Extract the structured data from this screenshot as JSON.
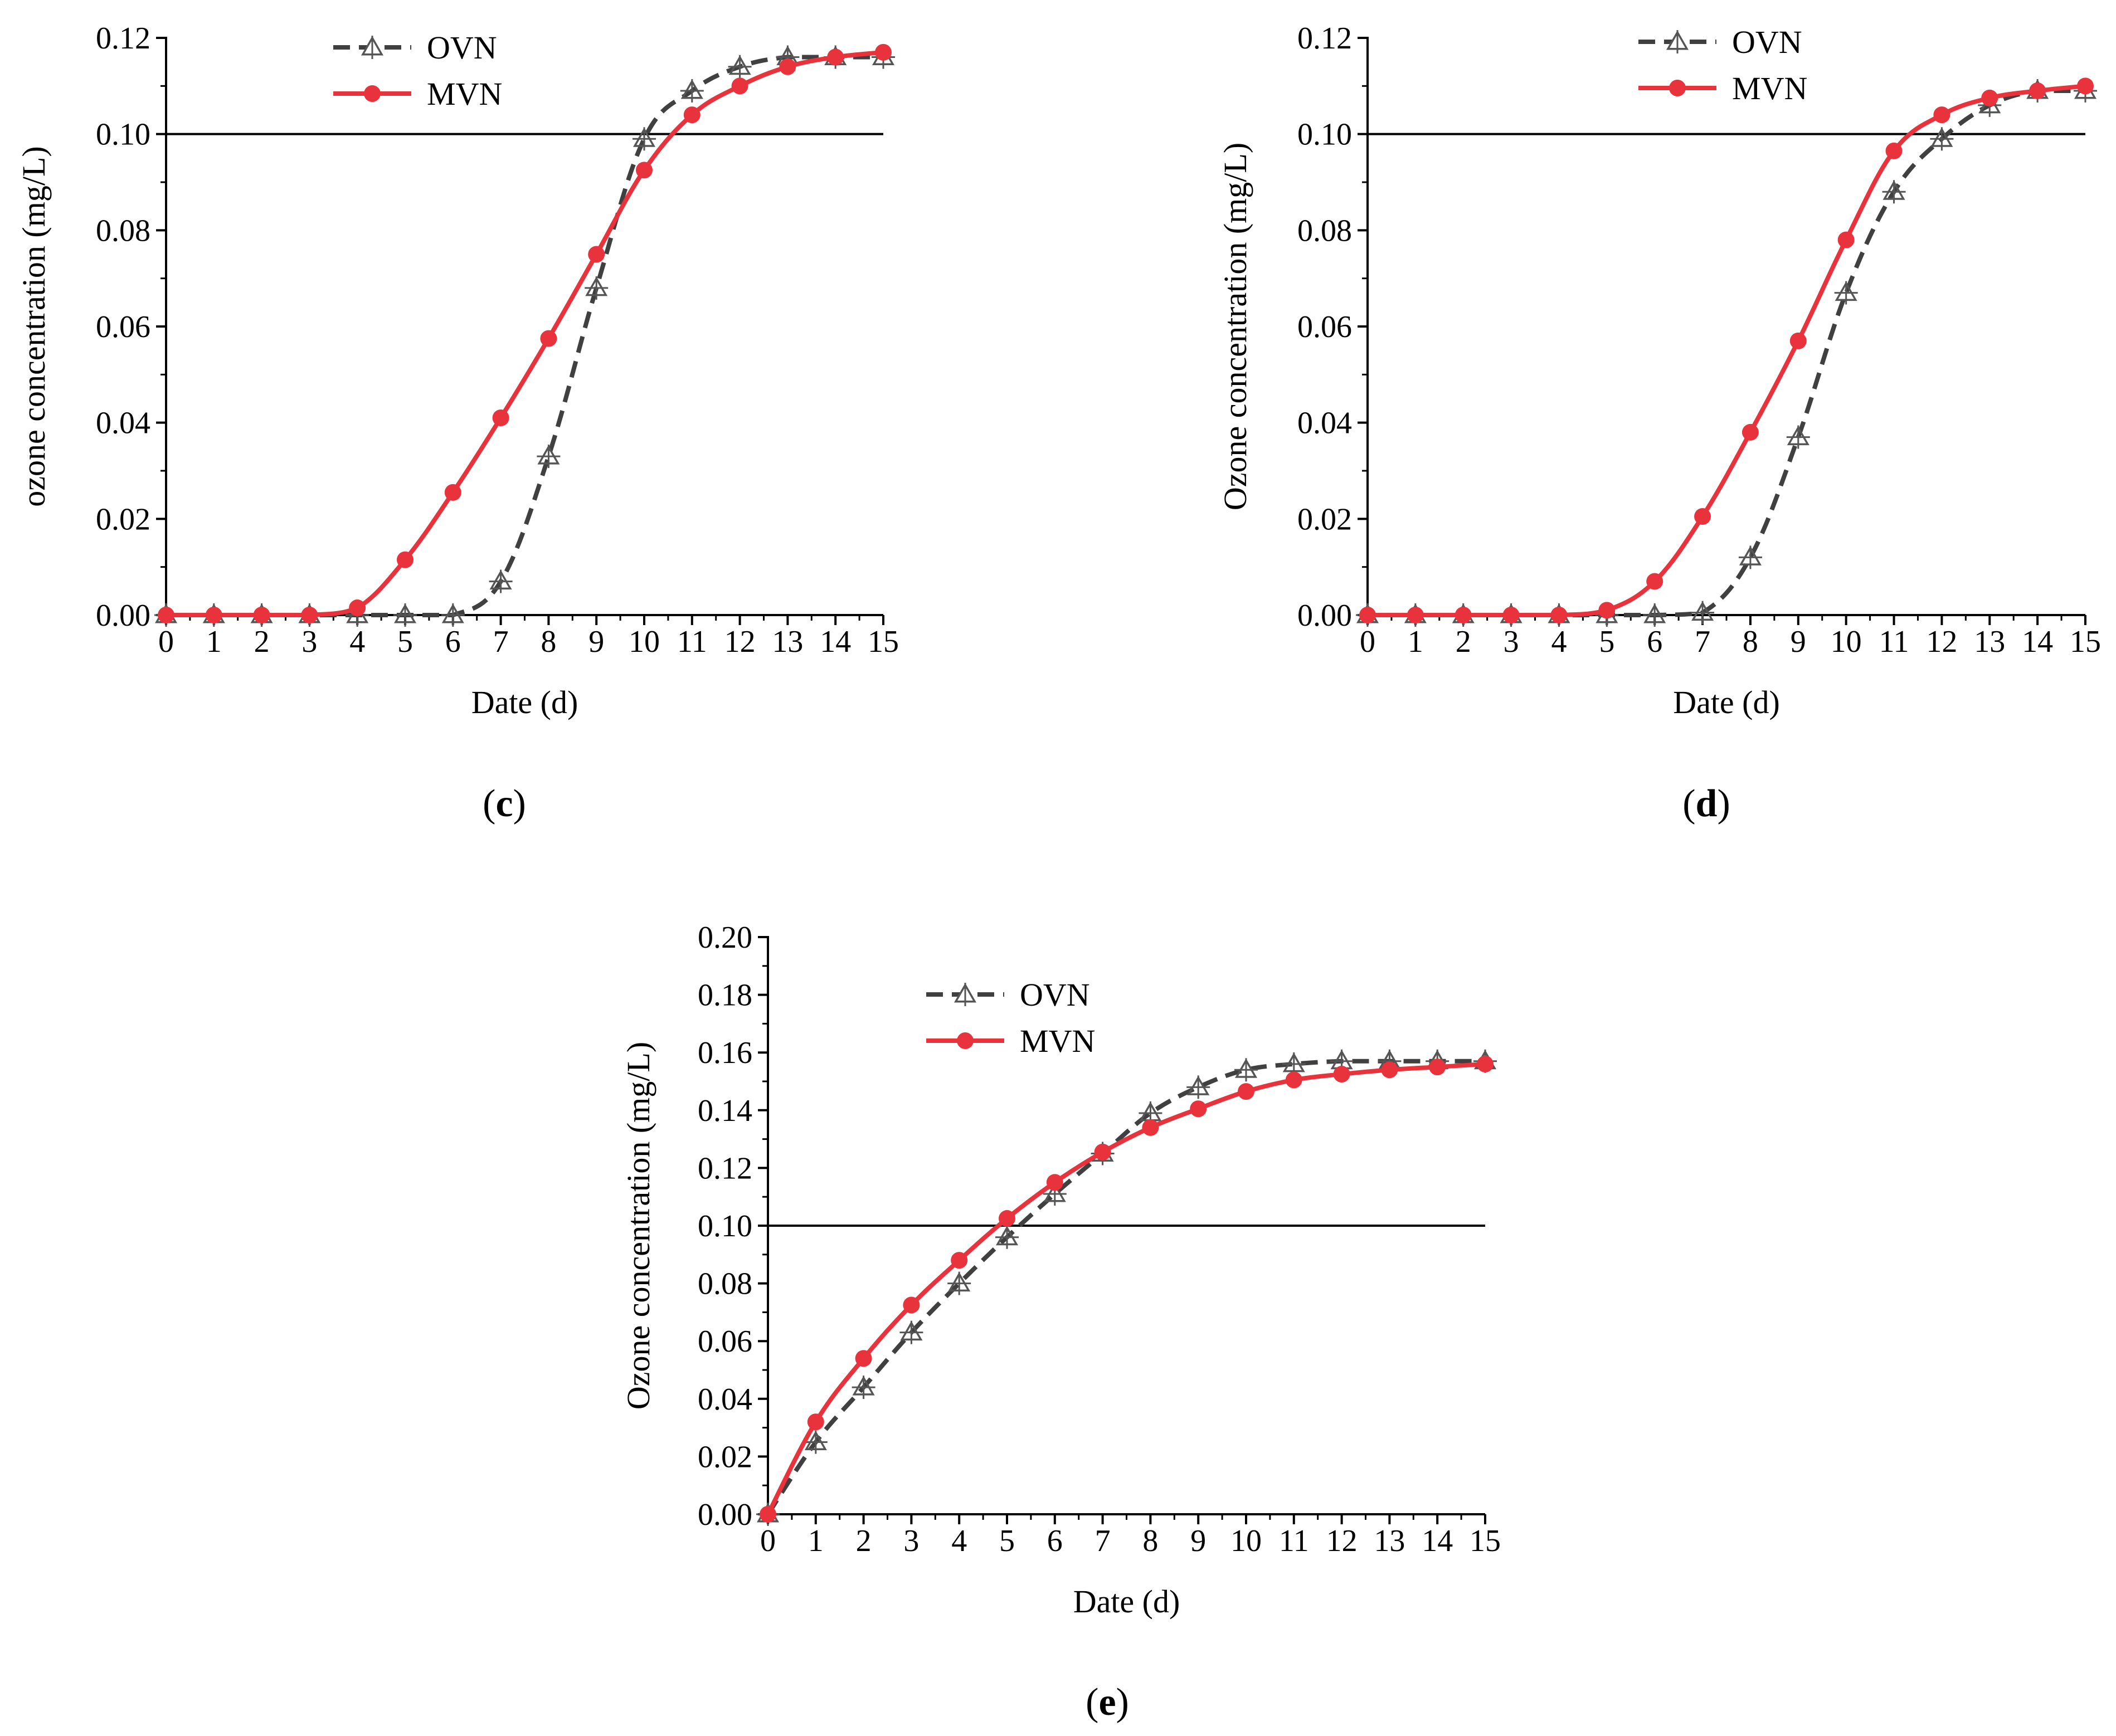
{
  "chart_data": [
    {
      "id": "c",
      "type": "line",
      "caption": {
        "open": "(",
        "letter": "c",
        "close": ")"
      },
      "xlabel": "Date (d)",
      "ylabel": "ozone concentration (mg/L)",
      "xlim": [
        0,
        15
      ],
      "ylim": [
        0,
        0.12
      ],
      "x_ticks": [
        0,
        1,
        2,
        3,
        4,
        5,
        6,
        7,
        8,
        9,
        10,
        11,
        12,
        13,
        14,
        15
      ],
      "y_ticks": [
        "0.00",
        "0.02",
        "0.04",
        "0.06",
        "0.08",
        "0.10",
        "0.12"
      ],
      "reference_line": 0.1,
      "legend_position": "top-left",
      "x": [
        0,
        1,
        2,
        3,
        4,
        5,
        6,
        7,
        8,
        9,
        10,
        11,
        12,
        13,
        14,
        15
      ],
      "series": [
        {
          "name": "OVN",
          "style": "dashed",
          "marker": "triangle-open",
          "color": "#404040",
          "values": [
            0,
            0,
            0,
            0,
            0,
            0,
            0,
            0.007,
            0.033,
            0.068,
            0.099,
            0.109,
            0.114,
            0.116,
            0.116,
            0.116
          ]
        },
        {
          "name": "MVN",
          "style": "solid",
          "marker": "circle-filled",
          "color": "#e8323c",
          "values": [
            0,
            0,
            0,
            0,
            0.0015,
            0.0115,
            0.0255,
            0.041,
            0.0575,
            0.075,
            0.0925,
            0.104,
            0.11,
            0.114,
            0.116,
            0.117
          ]
        }
      ]
    },
    {
      "id": "d",
      "type": "line",
      "caption": {
        "open": "(",
        "letter": "d",
        "close": ")"
      },
      "xlabel": "Date (d)",
      "ylabel": "Ozone concentration (mg/L)",
      "xlim": [
        0,
        15
      ],
      "ylim": [
        0,
        0.12
      ],
      "x_ticks": [
        0,
        1,
        2,
        3,
        4,
        5,
        6,
        7,
        8,
        9,
        10,
        11,
        12,
        13,
        14,
        15
      ],
      "y_ticks": [
        "0.00",
        "0.02",
        "0.04",
        "0.06",
        "0.08",
        "0.10",
        "0.12"
      ],
      "reference_line": 0.1,
      "legend_position": "top-left",
      "x": [
        0,
        1,
        2,
        3,
        4,
        5,
        6,
        7,
        8,
        9,
        10,
        11,
        12,
        13,
        14,
        15
      ],
      "series": [
        {
          "name": "OVN",
          "style": "dashed",
          "marker": "triangle-open",
          "color": "#404040",
          "values": [
            0,
            0,
            0,
            0,
            0,
            0,
            0,
            0.0005,
            0.012,
            0.037,
            0.067,
            0.088,
            0.099,
            0.106,
            0.109,
            0.109
          ]
        },
        {
          "name": "MVN",
          "style": "solid",
          "marker": "circle-filled",
          "color": "#e8323c",
          "values": [
            0,
            0,
            0,
            0,
            0,
            0.001,
            0.007,
            0.0205,
            0.038,
            0.057,
            0.078,
            0.0965,
            0.104,
            0.1075,
            0.109,
            0.11
          ]
        }
      ]
    },
    {
      "id": "e",
      "type": "line",
      "caption": {
        "open": "(",
        "letter": "e",
        "close": ")"
      },
      "xlabel": "Date (d)",
      "ylabel": "Ozone concentration (mg/L)",
      "xlim": [
        0,
        15
      ],
      "ylim": [
        0,
        0.2
      ],
      "x_ticks": [
        0,
        1,
        2,
        3,
        4,
        5,
        6,
        7,
        8,
        9,
        10,
        11,
        12,
        13,
        14,
        15
      ],
      "y_ticks": [
        "0.00",
        "0.02",
        "0.04",
        "0.06",
        "0.08",
        "0.10",
        "0.12",
        "0.14",
        "0.16",
        "0.18",
        "0.20"
      ],
      "reference_line": 0.1,
      "legend_position": "top-left",
      "x": [
        0,
        1,
        2,
        3,
        4,
        5,
        6,
        7,
        8,
        9,
        10,
        11,
        12,
        13,
        14,
        15
      ],
      "series": [
        {
          "name": "OVN",
          "style": "dashed",
          "marker": "triangle-open",
          "color": "#404040",
          "values": [
            0,
            0.025,
            0.044,
            0.063,
            0.08,
            0.096,
            0.111,
            0.125,
            0.139,
            0.148,
            0.154,
            0.156,
            0.157,
            0.157,
            0.157,
            0.157
          ]
        },
        {
          "name": "MVN",
          "style": "solid",
          "marker": "circle-filled",
          "color": "#e8323c",
          "values": [
            0,
            0.032,
            0.054,
            0.0725,
            0.088,
            0.1025,
            0.115,
            0.1255,
            0.134,
            0.1405,
            0.1465,
            0.1505,
            0.1525,
            0.154,
            0.155,
            0.156
          ]
        }
      ]
    }
  ]
}
